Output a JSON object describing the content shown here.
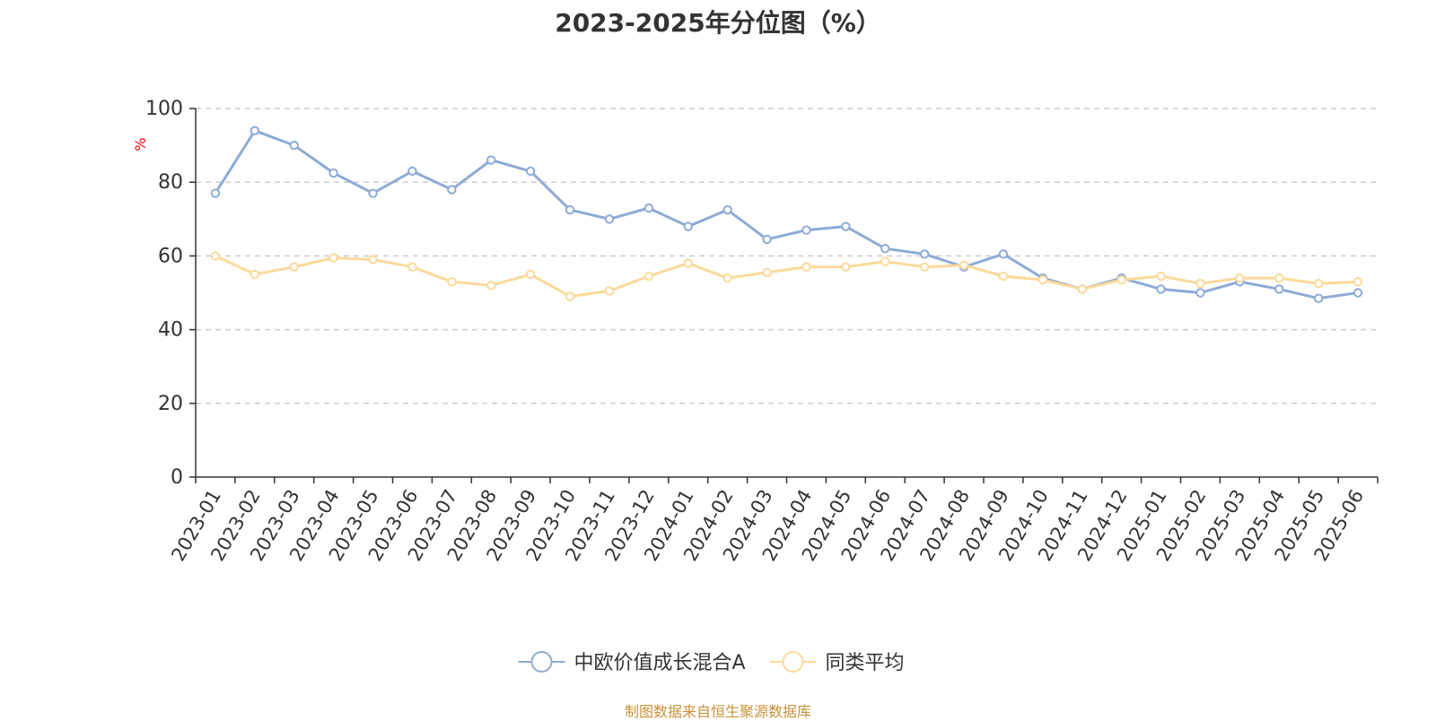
{
  "title": "2023-2025年分位图（%）",
  "source_note": "制图数据来自恒生聚源数据库",
  "colors": {
    "axis": "#333333",
    "grid": "#cccccc",
    "ylabel": "#ff0000",
    "source": "#c8923a"
  },
  "chart_data": {
    "type": "line",
    "title": "2023-2025年分位图（%）",
    "xlabel": "",
    "ylabel": "%",
    "ylim": [
      0,
      100
    ],
    "yticks": [
      0,
      20,
      40,
      60,
      80,
      100
    ],
    "grid": true,
    "legend_position": "bottom",
    "categories": [
      "2023-01",
      "2023-02",
      "2023-03",
      "2023-04",
      "2023-05",
      "2023-06",
      "2023-07",
      "2023-08",
      "2023-09",
      "2023-10",
      "2023-11",
      "2023-12",
      "2024-01",
      "2024-02",
      "2024-03",
      "2024-04",
      "2024-05",
      "2024-06",
      "2024-07",
      "2024-08",
      "2024-09",
      "2024-10",
      "2024-11",
      "2024-12",
      "2025-01",
      "2025-02",
      "2025-03",
      "2025-04",
      "2025-05",
      "2025-06"
    ],
    "series": [
      {
        "name": "中欧价值成长混合A",
        "color": "#8eabd6",
        "values": [
          77,
          94,
          90,
          82.5,
          77,
          83,
          78,
          86,
          83,
          72.5,
          70,
          73,
          68,
          72.5,
          64.5,
          67,
          68,
          62,
          60.5,
          57,
          60.5,
          54,
          51,
          54,
          51,
          50,
          53,
          51,
          48.5,
          50
        ]
      },
      {
        "name": "同类平均",
        "color": "#fcd999",
        "values": [
          60,
          55,
          57,
          59.5,
          59,
          57,
          53,
          52,
          55,
          49,
          50.5,
          54.5,
          58,
          54,
          55.5,
          57,
          57,
          58.5,
          57,
          57.5,
          54.5,
          53.5,
          51,
          53.5,
          54.5,
          52.5,
          54,
          54,
          52.5,
          53
        ]
      }
    ]
  }
}
